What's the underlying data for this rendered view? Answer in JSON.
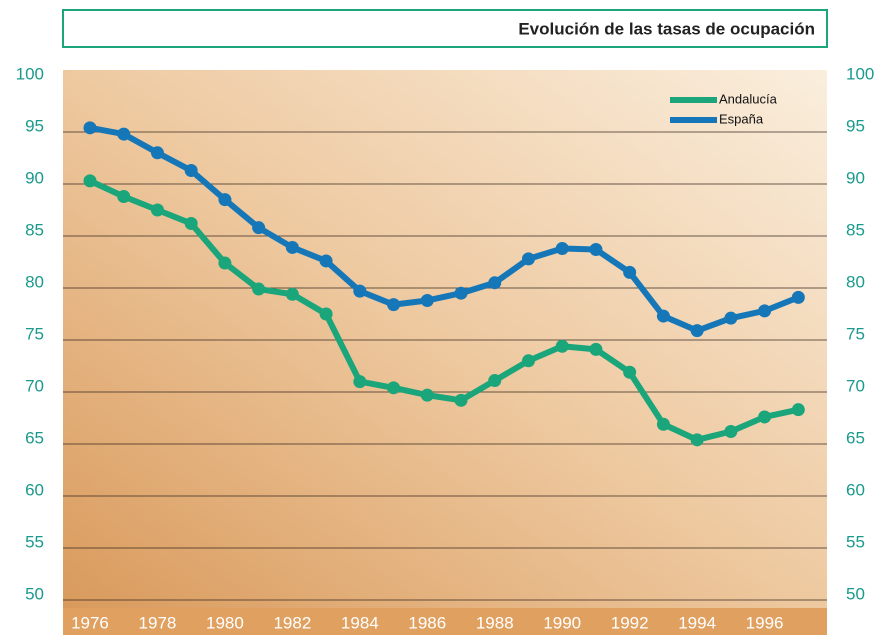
{
  "chart_data": {
    "type": "line",
    "title": "Evolución de las tasas de ocupación",
    "x": [
      1976,
      1977,
      1978,
      1979,
      1980,
      1981,
      1982,
      1983,
      1984,
      1985,
      1986,
      1987,
      1988,
      1989,
      1990,
      1991,
      1992,
      1993,
      1994,
      1995,
      1996,
      1997
    ],
    "series": [
      {
        "name": "Andalucía",
        "color": "#1ba57a",
        "values": [
          90.3,
          88.8,
          87.5,
          86.2,
          82.4,
          79.9,
          79.4,
          77.5,
          71.0,
          70.4,
          69.7,
          69.2,
          71.1,
          73.0,
          74.4,
          74.1,
          71.9,
          66.9,
          65.4,
          66.2,
          67.6,
          68.3
        ]
      },
      {
        "name": "España",
        "color": "#1677b8",
        "values": [
          95.4,
          94.8,
          93.0,
          91.3,
          88.5,
          85.8,
          83.9,
          82.6,
          79.7,
          78.4,
          78.8,
          79.5,
          80.5,
          82.8,
          83.8,
          83.7,
          81.5,
          77.3,
          75.9,
          77.1,
          77.8,
          79.1
        ]
      }
    ],
    "xlim": [
      1975.2,
      1997.85
    ],
    "xticks": [
      1976,
      1978,
      1980,
      1982,
      1984,
      1986,
      1988,
      1990,
      1992,
      1994,
      1996
    ],
    "ylim": [
      50,
      100
    ],
    "yticks": [
      50,
      55,
      60,
      65,
      70,
      75,
      80,
      85,
      90,
      95,
      100
    ],
    "grid": true,
    "legend": "top-right"
  }
}
